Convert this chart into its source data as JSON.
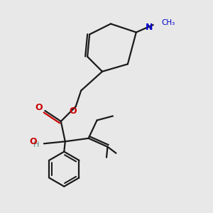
{
  "bg_color": "#e8e8e8",
  "bond_color": "#1a1a1a",
  "o_color": "#cc0000",
  "n_color": "#0000cc",
  "h_color": "#5a8a8a",
  "line_width": 1.6,
  "fig_size": [
    3.0,
    3.0
  ],
  "dpi": 100,
  "xlim": [
    0,
    10
  ],
  "ylim": [
    0,
    10
  ]
}
